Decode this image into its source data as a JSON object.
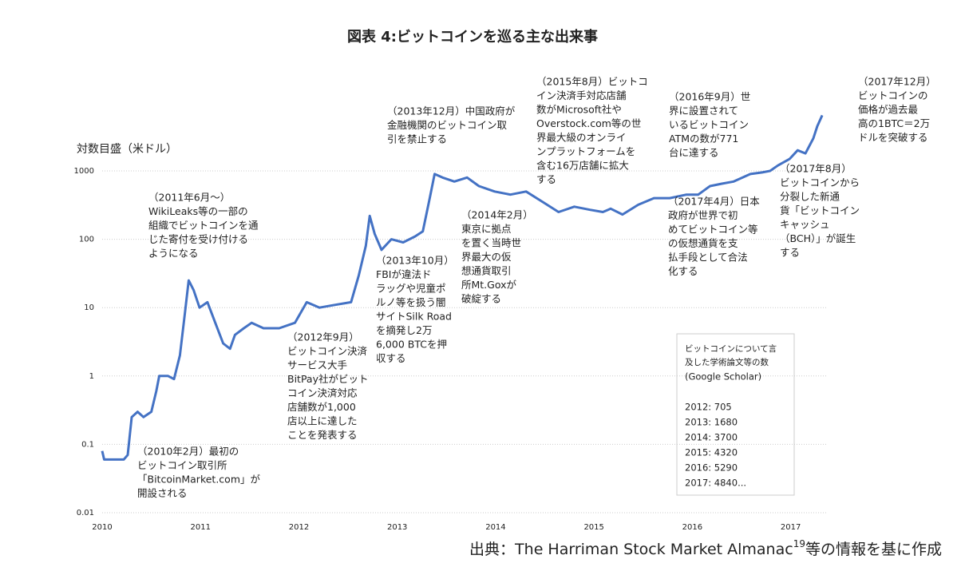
{
  "chart_data": {
    "type": "line",
    "title": "図表 4:ビットコインを巡る主な出来事",
    "y_label": "対数目盛（米ドル）",
    "log_y": true,
    "grid": true,
    "xlim": [
      2010,
      2017.36
    ],
    "ylim": [
      0.01,
      10000
    ],
    "xticks": [
      2010,
      2011,
      2012,
      2013,
      2014,
      2015,
      2016,
      2017
    ],
    "yticks": [
      0.01,
      0.1,
      1,
      10,
      100,
      1000
    ],
    "series": [
      {
        "color": "#4472c4",
        "x": [
          2010.0,
          2010.02,
          2010.1,
          2010.22,
          2010.26,
          2010.3,
          2010.36,
          2010.42,
          2010.5,
          2010.55,
          2010.58,
          2010.67,
          2010.73,
          2010.79,
          2010.84,
          2010.88,
          2010.93,
          2010.99,
          2011.07,
          2011.15,
          2011.23,
          2011.3,
          2011.35,
          2011.44,
          2011.52,
          2011.64,
          2011.8,
          2011.96,
          2012.08,
          2012.21,
          2012.37,
          2012.53,
          2012.61,
          2012.68,
          2012.72,
          2012.77,
          2012.84,
          2012.94,
          2013.06,
          2013.18,
          2013.26,
          2013.33,
          2013.38,
          2013.46,
          2013.58,
          2013.71,
          2013.83,
          2013.99,
          2014.15,
          2014.31,
          2014.48,
          2014.64,
          2014.8,
          2014.96,
          2015.09,
          2015.17,
          2015.29,
          2015.45,
          2015.61,
          2015.77,
          2015.94,
          2016.06,
          2016.18,
          2016.3,
          2016.42,
          2016.59,
          2016.71,
          2016.79,
          2016.87,
          2016.99,
          2017.07,
          2017.15,
          2017.23,
          2017.27,
          2017.32
        ],
        "values": [
          0.08,
          0.06,
          0.06,
          0.06,
          0.07,
          0.25,
          0.3,
          0.25,
          0.3,
          0.6,
          1,
          1,
          0.9,
          2,
          8,
          25,
          18,
          10,
          12,
          6,
          3,
          2.5,
          4,
          5,
          6,
          5,
          5,
          6,
          12,
          10,
          11,
          12,
          30,
          80,
          220,
          120,
          70,
          100,
          90,
          110,
          130,
          400,
          900,
          800,
          700,
          800,
          600,
          500,
          450,
          500,
          350,
          250,
          300,
          270,
          250,
          280,
          230,
          320,
          400,
          400,
          450,
          450,
          600,
          650,
          700,
          900,
          950,
          1000,
          1200,
          1500,
          2000,
          1800,
          3000,
          4500,
          6500
        ]
      }
    ],
    "annotations": [
      {
        "lines": [
          "（2010年2月）最初の",
          "ビットコイン取引所",
          "「BitcoinMarket.com」が",
          "開設される"
        ]
      },
      {
        "lines": [
          "（2011年6月〜）",
          "WikiLeaks等の一部の",
          "組織でビットコインを通",
          "じた寄付を受け付ける",
          "ようになる"
        ]
      },
      {
        "lines": [
          "（2012年9月）",
          "ビットコイン決済",
          "サービス大手",
          "BitPay社がビット",
          "コイン決済対応",
          "店舗数が1,000",
          "店以上に達した",
          "ことを発表する"
        ]
      },
      {
        "lines": [
          "（2013年10月）",
          "FBIが違法ド",
          "ラッグや児童ポ",
          "ルノ等を扱う闇",
          "サイトSilk Road",
          "を摘発し2万",
          "6,000 BTCを押",
          "収する"
        ]
      },
      {
        "lines": [
          "（2013年12月）中国政府が",
          "金融機関のビットコイン取",
          "引を禁止する"
        ]
      },
      {
        "lines": [
          "（2014年2月）",
          "東京に拠点",
          "を置く当時世",
          "界最大の仮",
          "想通貨取引",
          "所Mt.Goxが",
          "破綻する"
        ]
      },
      {
        "lines": [
          "（2015年8月）ビットコ",
          "イン決済手対応店舗",
          "数がMicrosoft社や",
          "Overstock.com等の世",
          "界最大級のオンライ",
          "ンプラットフォームを",
          "含む16万店舗に拡大",
          "する"
        ]
      },
      {
        "lines": [
          "（2016年9月）世",
          "界に設置されて",
          "いるビットコイン",
          "ATMの数が771",
          "台に達する"
        ]
      },
      {
        "lines": [
          "（2017年4月）日本",
          "政府が世界で初",
          "めてビットコイン等",
          "の仮想通貨を支",
          "払手段として合法",
          "化する"
        ]
      },
      {
        "lines": [
          "（2017年8月）",
          "ビットコインから",
          "分裂した新通",
          "貨「ビットコイン",
          "キャッシュ",
          "（BCH）」が誕生",
          "する"
        ]
      },
      {
        "lines": [
          "（2017年12月）",
          "ビットコインの",
          "価格が過去最",
          "高の1BTC＝2万",
          "ドルを突破する"
        ]
      }
    ],
    "inset": {
      "title_lines": [
        "ビットコインについて言",
        "及した学術論文等の数"
      ],
      "subtitle": "(Google Scholar)",
      "rows": [
        "2012:  705",
        "2013: 1680",
        "2014: 3700",
        "2015: 4320",
        "2016: 5290",
        "2017: 4840..."
      ]
    },
    "source": {
      "prefix": "出典：The Harriman Stock Market Almanac",
      "superscript": "19",
      "suffix": "等の情報を基に作成"
    }
  }
}
